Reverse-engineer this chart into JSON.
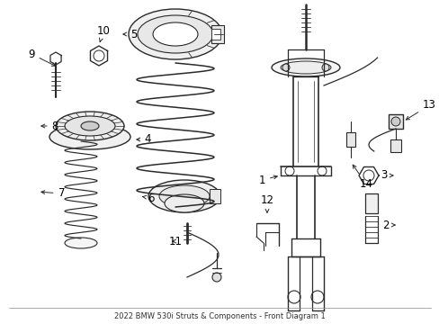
{
  "title": "2022 BMW 530i Struts & Components - Front Diagram 1",
  "bg_color": "#ffffff",
  "line_color": "#2a2a2a",
  "label_color": "#000000",
  "fig_width": 4.89,
  "fig_height": 3.6,
  "dpi": 100
}
